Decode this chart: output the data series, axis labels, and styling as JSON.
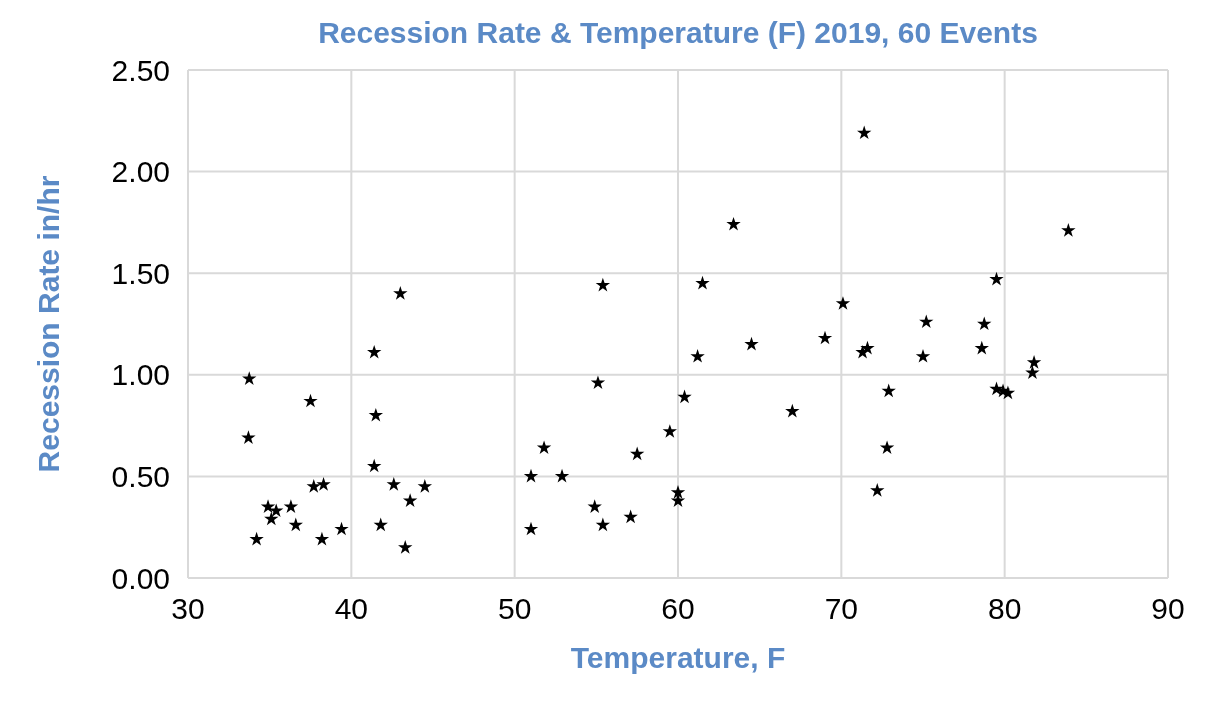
{
  "chart_data": {
    "type": "scatter",
    "title": "Recession Rate & Temperature (F) 2019, 60 Events",
    "xlabel": "Temperature, F",
    "ylabel": "Recession Rate in/hr",
    "x": [
      33.75,
      33.7,
      34.2,
      34.9,
      35.1,
      35.4,
      36.3,
      36.6,
      37.5,
      37.7,
      38.3,
      38.2,
      39.4,
      41.4,
      41.5,
      41.4,
      41.8,
      42.6,
      43.0,
      43.3,
      43.6,
      44.5,
      51.0,
      51.0,
      51.8,
      52.9,
      54.9,
      55.4,
      55.1,
      55.4,
      57.1,
      57.5,
      59.5,
      60.0,
      60.0,
      60.4,
      61.2,
      61.5,
      63.4,
      64.5,
      67.0,
      69.0,
      70.1,
      71.4,
      71.3,
      71.6,
      72.9,
      72.8,
      72.2,
      75.0,
      75.2,
      78.75,
      78.6,
      79.5,
      79.5,
      79.9,
      80.2,
      81.7,
      81.8,
      83.9
    ],
    "values": [
      0.98,
      0.69,
      0.19,
      0.35,
      0.29,
      0.33,
      0.35,
      0.26,
      0.87,
      0.45,
      0.46,
      0.19,
      0.24,
      1.11,
      0.8,
      0.55,
      0.26,
      0.46,
      1.4,
      0.15,
      0.38,
      0.45,
      0.24,
      0.5,
      0.64,
      0.5,
      0.35,
      0.26,
      0.96,
      1.44,
      0.3,
      0.61,
      0.72,
      0.42,
      0.38,
      0.89,
      1.09,
      1.45,
      1.74,
      1.15,
      0.82,
      1.18,
      1.35,
      2.19,
      1.11,
      1.13,
      0.92,
      0.64,
      0.43,
      1.09,
      1.26,
      1.25,
      1.13,
      1.47,
      0.93,
      0.92,
      0.91,
      1.01,
      1.06,
      1.71
    ],
    "color": "#000000",
    "marker": "star",
    "grid": true,
    "xlim": [
      30,
      90
    ],
    "xticks": [
      30,
      40,
      50,
      60,
      70,
      80,
      90
    ],
    "ylim": [
      0,
      2.5
    ],
    "yticks": [
      {
        "value": 0,
        "label": "0.00"
      },
      {
        "value": 0.5,
        "label": "0.50"
      },
      {
        "value": 1,
        "label": "1.00"
      },
      {
        "value": 1.5,
        "label": "1.50"
      },
      {
        "value": 2,
        "label": "2.00"
      },
      {
        "value": 2.5,
        "label": "2.50"
      }
    ]
  }
}
